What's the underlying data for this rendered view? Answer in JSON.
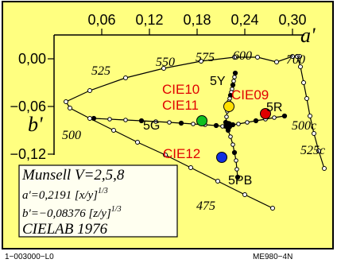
{
  "chart_data": {
    "type": "scatter",
    "title": "",
    "x_axis": {
      "name": "a'",
      "ticks": [
        "0,06",
        "0,12",
        "0,18",
        "0,24",
        "0,30"
      ],
      "tick_values": [
        0.06,
        0.12,
        0.18,
        0.24,
        0.3
      ],
      "range": [
        0.0,
        0.34
      ]
    },
    "y_axis": {
      "name": "b'",
      "ticks": [
        "0,00",
        "−0,06",
        "−0,12"
      ],
      "tick_values": [
        0.0,
        -0.06,
        -0.12
      ],
      "range": [
        -0.125,
        0.02
      ]
    },
    "spectral_locus": {
      "labels": [
        "475",
        "500",
        "500c",
        "525",
        "525c",
        "550",
        "575",
        "600",
        "700"
      ],
      "points": [
        [
          0.306,
          0.003
        ],
        [
          0.309,
          0.003
        ],
        [
          0.3,
          0.003
        ],
        [
          0.28,
          -0.004
        ],
        [
          0.256,
          0.002
        ],
        [
          0.227,
          0.002
        ],
        [
          0.185,
          -0.003
        ],
        [
          0.138,
          -0.012
        ],
        [
          0.09,
          -0.024
        ],
        [
          0.045,
          -0.04
        ],
        [
          0.015,
          -0.054
        ],
        [
          0.02,
          -0.062
        ],
        [
          0.045,
          -0.075
        ],
        [
          0.075,
          -0.09
        ],
        [
          0.105,
          -0.105
        ],
        [
          0.14,
          -0.121
        ],
        [
          0.172,
          -0.137
        ],
        [
          0.206,
          -0.154
        ],
        [
          0.24,
          -0.171
        ],
        [
          0.275,
          -0.188
        ]
      ],
      "purple_line": [
        [
          0.306,
          0.003
        ],
        [
          0.31,
          -0.01
        ],
        [
          0.314,
          -0.03
        ],
        [
          0.318,
          -0.05
        ],
        [
          0.322,
          -0.072
        ],
        [
          0.327,
          -0.094
        ],
        [
          0.333,
          -0.116
        ],
        [
          0.34,
          -0.138
        ]
      ]
    },
    "series": [
      {
        "name": "5Y",
        "points": [
          [
            0.228,
            -0.018
          ],
          [
            0.227,
            -0.023
          ],
          [
            0.226,
            -0.028
          ],
          [
            0.225,
            -0.033
          ],
          [
            0.224,
            -0.038
          ],
          [
            0.223,
            -0.042
          ],
          [
            0.222,
            -0.046
          ],
          [
            0.221,
            -0.05
          ],
          [
            0.22,
            -0.054
          ],
          [
            0.219,
            -0.06
          ],
          [
            0.218,
            -0.066
          ],
          [
            0.217,
            -0.073
          ],
          [
            0.216,
            -0.08
          ],
          [
            0.215,
            -0.085
          ]
        ]
      },
      {
        "name": "5R",
        "points": [
          [
            0.29,
            -0.072
          ],
          [
            0.277,
            -0.074
          ],
          [
            0.266,
            -0.076
          ],
          [
            0.254,
            -0.078
          ],
          [
            0.243,
            -0.08
          ],
          [
            0.232,
            -0.082
          ],
          [
            0.225,
            -0.083
          ]
        ]
      },
      {
        "name": "5G",
        "points": [
          [
            0.05,
            -0.075
          ],
          [
            0.07,
            -0.076
          ],
          [
            0.09,
            -0.077
          ],
          [
            0.11,
            -0.078
          ],
          [
            0.128,
            -0.079
          ],
          [
            0.145,
            -0.08
          ],
          [
            0.16,
            -0.081
          ],
          [
            0.175,
            -0.082
          ],
          [
            0.19,
            -0.083
          ],
          [
            0.204,
            -0.084
          ],
          [
            0.212,
            -0.085
          ]
        ]
      },
      {
        "name": "5PB",
        "points": [
          [
            0.231,
            -0.149
          ],
          [
            0.23,
            -0.139
          ],
          [
            0.229,
            -0.128
          ],
          [
            0.227,
            -0.118
          ],
          [
            0.225,
            -0.108
          ],
          [
            0.222,
            -0.098
          ],
          [
            0.219,
            -0.09
          ],
          [
            0.216,
            -0.085
          ]
        ]
      }
    ],
    "neutral_point": [
      0.2191,
      -0.0838
    ],
    "cie_markers": [
      {
        "label": "CIE10",
        "color": "#ffe000",
        "point": [
          0.22,
          -0.06
        ]
      },
      {
        "label": "CIE09",
        "color": "#e00000",
        "point": [
          0.266,
          -0.069
        ]
      },
      {
        "label": "CIE11",
        "color": "#10c020",
        "point": [
          0.186,
          -0.078
        ]
      },
      {
        "label": "CIE12",
        "color": "#1030e0",
        "point": [
          0.211,
          -0.124
        ]
      }
    ],
    "hue_labels": [
      "5Y",
      "5R",
      "5G",
      "5PB"
    ],
    "info_box": {
      "line1": "Munsell V=2,5,8",
      "line2": "a'=0,2191 [x/y]",
      "line2_sup": "1/3",
      "line3": "b'=−0,08376 [z/y]",
      "line3_sup": "1/3",
      "line4": "CIELAB 1976"
    },
    "footer_left": "1−003000−L0",
    "footer_right": "ME980−4N",
    "colors": {
      "plot_bg": "#ffff80",
      "frame": "#000000"
    }
  }
}
